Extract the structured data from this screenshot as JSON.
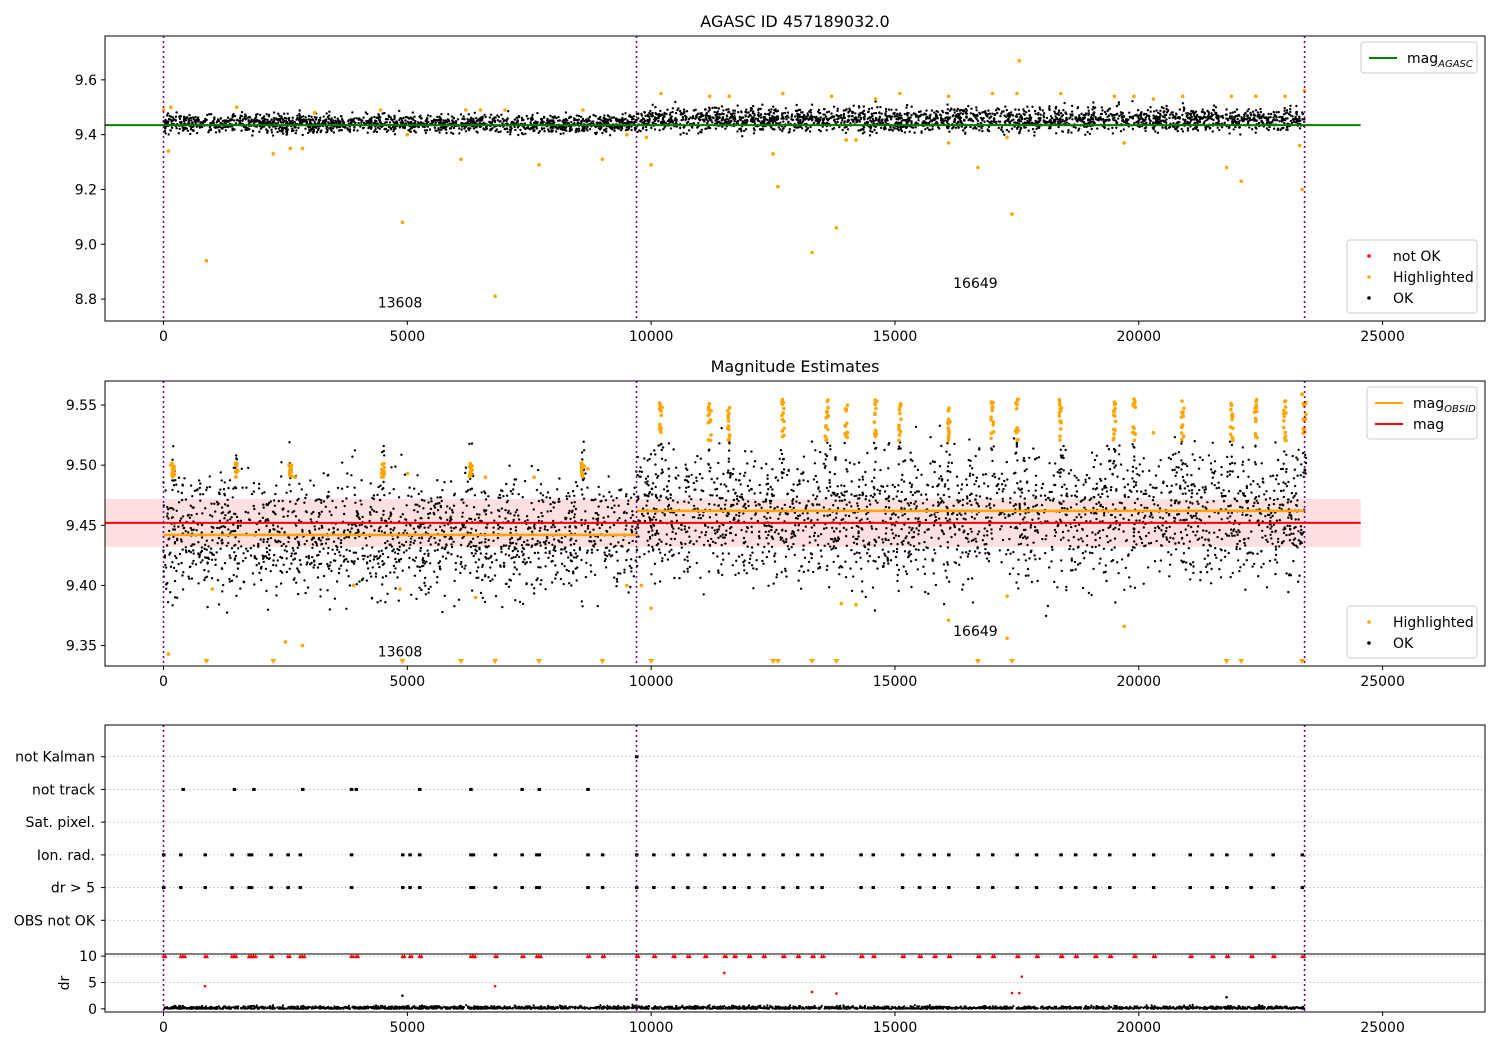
{
  "chart_data": [
    {
      "type": "scatter",
      "title": "AGASC ID 457189032.0",
      "xlim": [
        -1200,
        27100
      ],
      "ylim": [
        8.72,
        9.76
      ],
      "xticks": [
        0,
        5000,
        10000,
        15000,
        20000,
        25000
      ],
      "yticks": [
        8.8,
        9.0,
        9.2,
        9.4,
        9.6
      ],
      "ytick_labels": [
        "8.8",
        "9.0",
        "9.2",
        "9.4",
        "9.6"
      ],
      "obs_boundaries": [
        0,
        9700,
        23400
      ],
      "obs_labels": [
        {
          "text": "13608",
          "x": 4850,
          "y": 8.77
        },
        {
          "text": "16649",
          "x": 16650,
          "y": 8.84
        }
      ],
      "agasc_mag": {
        "value": 9.435,
        "xrange": [
          -1200,
          24550
        ],
        "color": "#008000"
      },
      "ok_band": [
        {
          "xrange": [
            0,
            9700
          ],
          "center": 9.44,
          "spread": 0.03
        },
        {
          "xrange": [
            9700,
            23400
          ],
          "center": 9.455,
          "spread": 0.04
        }
      ],
      "highlighted": [
        [
          0,
          9.49
        ],
        [
          100,
          9.34
        ],
        [
          150,
          9.5
        ],
        [
          880,
          8.94
        ],
        [
          1500,
          9.5
        ],
        [
          2250,
          9.33
        ],
        [
          2600,
          9.35
        ],
        [
          2850,
          9.35
        ],
        [
          3100,
          9.48
        ],
        [
          4450,
          9.49
        ],
        [
          4900,
          9.08
        ],
        [
          5000,
          9.4
        ],
        [
          6100,
          9.31
        ],
        [
          6200,
          9.49
        ],
        [
          6500,
          9.49
        ],
        [
          6800,
          8.81
        ],
        [
          7000,
          9.49
        ],
        [
          7700,
          9.29
        ],
        [
          8600,
          9.49
        ],
        [
          9000,
          9.31
        ],
        [
          9500,
          9.4
        ],
        [
          9900,
          9.39
        ],
        [
          10000,
          9.29
        ],
        [
          10200,
          9.55
        ],
        [
          11200,
          9.54
        ],
        [
          11600,
          9.54
        ],
        [
          12500,
          9.33
        ],
        [
          12600,
          9.21
        ],
        [
          12700,
          9.55
        ],
        [
          13300,
          8.97
        ],
        [
          13700,
          9.54
        ],
        [
          13800,
          9.06
        ],
        [
          14000,
          9.38
        ],
        [
          14200,
          9.38
        ],
        [
          14600,
          9.53
        ],
        [
          15100,
          9.55
        ],
        [
          16100,
          9.37
        ],
        [
          16100,
          9.54
        ],
        [
          16700,
          9.28
        ],
        [
          17000,
          9.55
        ],
        [
          17300,
          9.39
        ],
        [
          17400,
          9.11
        ],
        [
          17550,
          9.67
        ],
        [
          17500,
          9.55
        ],
        [
          18400,
          9.55
        ],
        [
          19500,
          9.54
        ],
        [
          19700,
          9.37
        ],
        [
          19900,
          9.54
        ],
        [
          20300,
          9.53
        ],
        [
          20900,
          9.54
        ],
        [
          21800,
          9.28
        ],
        [
          21900,
          9.54
        ],
        [
          22100,
          9.23
        ],
        [
          22400,
          9.54
        ],
        [
          23000,
          9.54
        ],
        [
          23300,
          9.36
        ],
        [
          23350,
          9.2
        ],
        [
          23400,
          9.56
        ]
      ],
      "legends": [
        {
          "position": "upper-right",
          "items": [
            {
              "label": "mag",
              "sub": "AGASC",
              "color": "#008000",
              "kind": "line"
            }
          ]
        },
        {
          "position": "lower-right",
          "items": [
            {
              "label": "not OK",
              "color": "#ff0000",
              "kind": "dot"
            },
            {
              "label": "Highlighted",
              "color": "#ffa500",
              "kind": "dot"
            },
            {
              "label": "OK",
              "color": "#000000",
              "kind": "dot"
            }
          ]
        }
      ]
    },
    {
      "type": "scatter",
      "title": "Magnitude Estimates",
      "xlim": [
        -1200,
        27100
      ],
      "ylim": [
        9.333,
        9.57
      ],
      "xticks": [
        0,
        5000,
        10000,
        15000,
        20000,
        25000
      ],
      "yticks": [
        9.35,
        9.4,
        9.45,
        9.5,
        9.55
      ],
      "ytick_labels": [
        "9.35",
        "9.40",
        "9.45",
        "9.50",
        "9.55"
      ],
      "obs_boundaries": [
        0,
        9700,
        23400
      ],
      "obs_labels": [
        {
          "text": "13608",
          "x": 4850,
          "y": 9.341
        },
        {
          "text": "16649",
          "x": 16650,
          "y": 9.358
        }
      ],
      "mag_line": {
        "value": 9.452,
        "band": [
          9.432,
          9.472
        ],
        "xrange": [
          -1200,
          24550
        ],
        "color": "#ff0000"
      },
      "obsid_mag": [
        {
          "xrange": [
            0,
            9700
          ],
          "value": 9.442
        },
        {
          "xrange": [
            9700,
            23400
          ],
          "value": 9.462
        }
      ],
      "ok_band": [
        {
          "xrange": [
            0,
            9700
          ],
          "center": 9.442,
          "spread": 0.045
        },
        {
          "xrange": [
            9700,
            23400
          ],
          "center": 9.458,
          "spread": 0.05
        }
      ],
      "spikes": [
        200,
        1500,
        2600,
        4500,
        6300,
        8600,
        10200,
        11200,
        11600,
        12700,
        13600,
        14000,
        14600,
        15100,
        16100,
        17000,
        17500,
        18400,
        19500,
        19900,
        20900,
        21900,
        22400,
        23000,
        23400
      ],
      "highlighted": [
        [
          150,
          9.5
        ],
        [
          100,
          9.343
        ],
        [
          1000,
          9.397
        ],
        [
          1500,
          9.5
        ],
        [
          2500,
          9.353
        ],
        [
          2850,
          9.35
        ],
        [
          2700,
          9.49
        ],
        [
          3900,
          9.4
        ],
        [
          4850,
          9.397
        ],
        [
          5000,
          9.493
        ],
        [
          6400,
          9.39
        ],
        [
          6600,
          9.49
        ],
        [
          7600,
          9.49
        ],
        [
          8700,
          9.497
        ],
        [
          9500,
          9.4
        ],
        [
          9800,
          9.4
        ],
        [
          10000,
          9.381
        ],
        [
          13900,
          9.385
        ],
        [
          14200,
          9.384
        ],
        [
          16100,
          9.371
        ],
        [
          17300,
          9.356
        ],
        [
          17300,
          9.391
        ],
        [
          19700,
          9.366
        ],
        [
          20300,
          9.527
        ],
        [
          23350,
          9.559
        ]
      ],
      "offscale_low": [
        880,
        2250,
        4900,
        6100,
        6800,
        7700,
        9000,
        10000,
        12500,
        12600,
        13300,
        13800,
        16700,
        17400,
        21800,
        22100,
        23350
      ],
      "legends": [
        {
          "position": "upper-right",
          "items": [
            {
              "label": "mag",
              "sub": "OBSID",
              "color": "#ffa500",
              "kind": "line"
            },
            {
              "label": "mag",
              "sub": "",
              "color": "#ff0000",
              "kind": "line"
            }
          ]
        },
        {
          "position": "lower-right",
          "items": [
            {
              "label": "Highlighted",
              "color": "#ffa500",
              "kind": "dot"
            },
            {
              "label": "OK",
              "color": "#000000",
              "kind": "dot"
            }
          ]
        }
      ]
    },
    {
      "type": "scatter",
      "title": "",
      "xlim": [
        -1200,
        27100
      ],
      "categories": [
        "not Kalman",
        "not track",
        "Sat. pixel.",
        "Ion. rad.",
        "dr > 5",
        "OBS not OK"
      ],
      "obs_boundaries": [
        0,
        9700,
        23400
      ],
      "flags": {
        "not Kalman": [
          9700
        ],
        "not track": [
          400,
          1450,
          1850,
          2850,
          3850,
          3950,
          5250,
          6300,
          7350,
          7700,
          8700
        ],
        "Sat. pixel.": [],
        "Ion. rad.": [
          0,
          350,
          850,
          1400,
          1750,
          1800,
          2200,
          2550,
          2800,
          3850,
          4900,
          5050,
          5250,
          6300,
          6350,
          6800,
          7350,
          7650,
          7700,
          8700,
          9000,
          9700,
          10050,
          10450,
          10750,
          11100,
          11500,
          11700,
          12000,
          12300,
          12700,
          13000,
          13300,
          13500,
          14300,
          14550,
          15150,
          15500,
          15800,
          16100,
          16700,
          17000,
          17500,
          17900,
          18400,
          18700,
          19100,
          19400,
          19900,
          20300,
          21050,
          21500,
          21800,
          22300,
          22750,
          23350
        ],
        "dr > 5": [
          0,
          350,
          850,
          1400,
          1750,
          1800,
          2200,
          2550,
          2800,
          3850,
          4900,
          5050,
          5250,
          6300,
          6350,
          6800,
          7350,
          7650,
          7700,
          8700,
          9000,
          9700,
          10050,
          10450,
          10750,
          11100,
          11500,
          11700,
          12000,
          12300,
          12700,
          13000,
          13300,
          13500,
          14300,
          14550,
          15150,
          15500,
          15800,
          16100,
          16700,
          17000,
          17500,
          17900,
          18400,
          18700,
          19100,
          19400,
          19900,
          20300,
          21050,
          21500,
          21800,
          22300,
          22750,
          23350
        ],
        "OBS not OK": []
      }
    },
    {
      "type": "scatter",
      "title": "",
      "ylabel": "dr",
      "xlim": [
        -1200,
        27100
      ],
      "ylim": [
        -0.6,
        10.4
      ],
      "xticks": [
        0,
        5000,
        10000,
        15000,
        20000,
        25000
      ],
      "yticks": [
        0,
        5,
        10
      ],
      "ytick_labels": [
        "0",
        "5",
        "10"
      ],
      "obs_boundaries": [
        0,
        9700,
        23400
      ],
      "capped_value": 10,
      "capped_x": [
        0,
        350,
        400,
        850,
        1400,
        1450,
        1750,
        1800,
        1850,
        2200,
        2550,
        2800,
        2850,
        3850,
        3950,
        4900,
        5050,
        5250,
        6300,
        6350,
        6800,
        7350,
        7650,
        7700,
        8700,
        9000,
        9700,
        10050,
        10450,
        10750,
        11100,
        11500,
        11700,
        12000,
        12300,
        12700,
        13000,
        13300,
        13500,
        14300,
        14550,
        15150,
        15500,
        15800,
        16100,
        16700,
        17000,
        17500,
        17900,
        18400,
        18700,
        19100,
        19400,
        19900,
        20300,
        21050,
        21500,
        21800,
        22300,
        22750,
        23350
      ],
      "outliers": [
        [
          850,
          4.3
        ],
        [
          6800,
          4.3
        ],
        [
          11500,
          6.8
        ],
        [
          13300,
          3.2
        ],
        [
          13800,
          2.9
        ],
        [
          17400,
          3.0
        ],
        [
          17600,
          6.1
        ],
        [
          17550,
          3.0
        ],
        [
          4900,
          2.5
        ],
        [
          21800,
          2.2
        ],
        [
          9700,
          1.8
        ]
      ]
    }
  ]
}
